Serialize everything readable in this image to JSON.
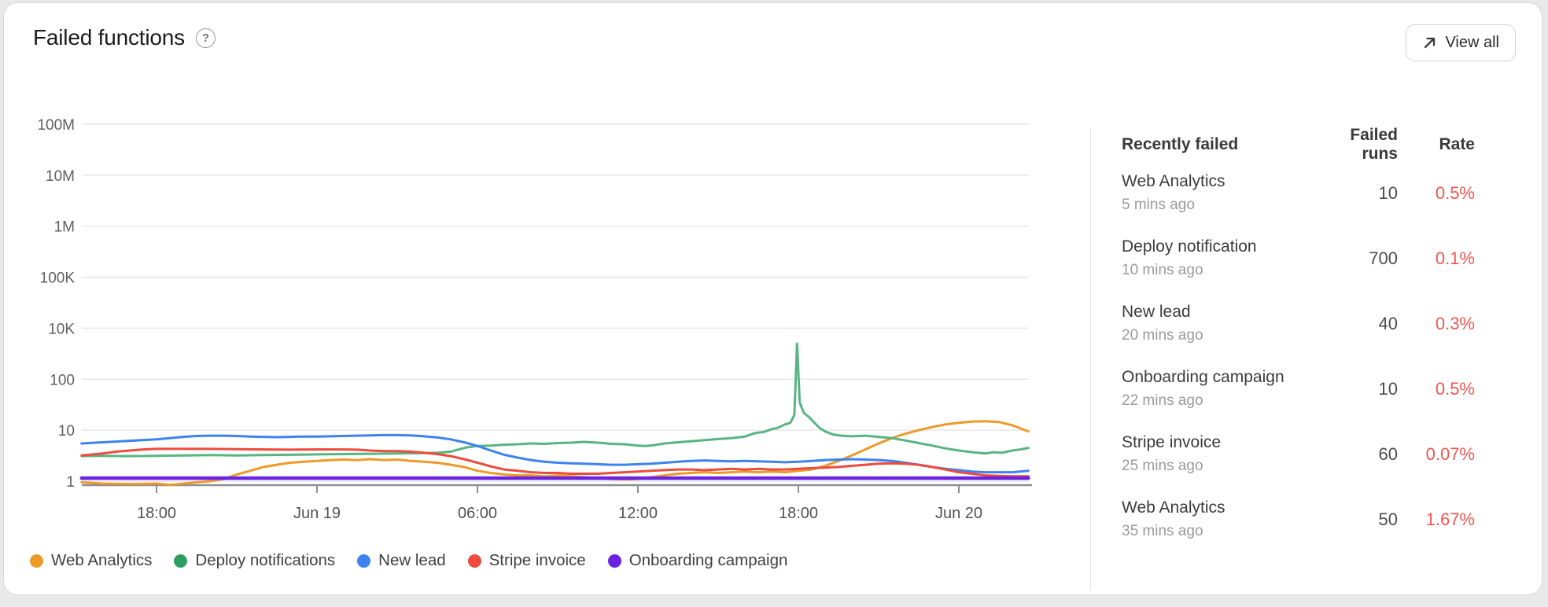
{
  "header": {
    "title": "Failed functions",
    "help_glyph": "?",
    "view_all_label": "View all"
  },
  "colors": {
    "card_bg": "#ffffff",
    "page_bg": "#e9e9e9",
    "grid": "#e8e8e8",
    "axis": "#8f8f8f",
    "rate_red": "#F2564F"
  },
  "chart_data": {
    "type": "line",
    "title": "Failed functions",
    "y_axis": {
      "scale": "log",
      "labels_bottom_to_top": [
        "1",
        "10",
        "100",
        "10K",
        "100K",
        "1M",
        "10M",
        "100M"
      ],
      "note": "1K decade is unlabeled/compressed between 100 and 10K"
    },
    "x_axis": {
      "t_unit": "hours since Jun 18 12:00",
      "ticks": [
        {
          "t": 6,
          "label": "18:00"
        },
        {
          "t": 12,
          "label": "Jun 19"
        },
        {
          "t": 18,
          "label": "06:00"
        },
        {
          "t": 24,
          "label": "12:00"
        },
        {
          "t": 30,
          "label": "18:00"
        },
        {
          "t": 36,
          "label": "Jun 20"
        }
      ]
    },
    "legend_position": "bottom-left",
    "grid": true,
    "series": [
      {
        "name": "Web Analytics",
        "color": "#EC9A28",
        "dot": "#EC9A28",
        "width": 3,
        "points": [
          [
            3.2,
            0.95
          ],
          [
            4,
            0.9
          ],
          [
            5,
            0.88
          ],
          [
            6,
            0.9
          ],
          [
            6.5,
            0.85
          ],
          [
            7,
            0.9
          ],
          [
            7.5,
            0.95
          ],
          [
            8,
            1.0
          ],
          [
            8.5,
            1.1
          ],
          [
            9,
            1.35
          ],
          [
            9.5,
            1.6
          ],
          [
            10,
            1.9
          ],
          [
            10.5,
            2.1
          ],
          [
            11,
            2.3
          ],
          [
            11.5,
            2.4
          ],
          [
            12,
            2.5
          ],
          [
            12.5,
            2.6
          ],
          [
            13,
            2.65
          ],
          [
            13.5,
            2.6
          ],
          [
            14,
            2.7
          ],
          [
            14.5,
            2.6
          ],
          [
            15,
            2.65
          ],
          [
            15.5,
            2.5
          ],
          [
            16,
            2.4
          ],
          [
            16.5,
            2.3
          ],
          [
            17,
            2.1
          ],
          [
            17.5,
            1.9
          ],
          [
            18,
            1.6
          ],
          [
            18.5,
            1.45
          ],
          [
            19,
            1.35
          ],
          [
            19.5,
            1.3
          ],
          [
            20,
            1.3
          ],
          [
            20.5,
            1.25
          ],
          [
            21,
            1.3
          ],
          [
            21.5,
            1.25
          ],
          [
            22,
            1.2
          ],
          [
            22.5,
            1.15
          ],
          [
            23,
            1.1
          ],
          [
            23.5,
            1.08
          ],
          [
            24,
            1.1
          ],
          [
            24.5,
            1.2
          ],
          [
            25,
            1.3
          ],
          [
            25.5,
            1.4
          ],
          [
            26,
            1.45
          ],
          [
            26.5,
            1.5
          ],
          [
            27,
            1.45
          ],
          [
            27.5,
            1.5
          ],
          [
            28,
            1.55
          ],
          [
            28.5,
            1.5
          ],
          [
            29,
            1.55
          ],
          [
            29.5,
            1.5
          ],
          [
            30,
            1.6
          ],
          [
            30.5,
            1.7
          ],
          [
            31,
            2.0
          ],
          [
            31.5,
            2.5
          ],
          [
            32,
            3.2
          ],
          [
            32.5,
            4.2
          ],
          [
            33,
            5.5
          ],
          [
            33.5,
            7
          ],
          [
            34,
            8.5
          ],
          [
            34.5,
            10
          ],
          [
            35,
            11.5
          ],
          [
            35.5,
            13
          ],
          [
            36,
            14
          ],
          [
            36.5,
            14.8
          ],
          [
            37,
            15
          ],
          [
            37.5,
            14.5
          ],
          [
            38,
            12.5
          ],
          [
            38.6,
            9.5
          ]
        ]
      },
      {
        "name": "Deploy notifications",
        "color": "#57B583",
        "dot": "#2E9E60",
        "width": 3,
        "points": [
          [
            3.2,
            3.1
          ],
          [
            4,
            3.15
          ],
          [
            5,
            3.1
          ],
          [
            6,
            3.15
          ],
          [
            7,
            3.2
          ],
          [
            8,
            3.25
          ],
          [
            9,
            3.2
          ],
          [
            10,
            3.25
          ],
          [
            11,
            3.3
          ],
          [
            12,
            3.35
          ],
          [
            13,
            3.4
          ],
          [
            14,
            3.45
          ],
          [
            15,
            3.5
          ],
          [
            16,
            3.55
          ],
          [
            16.5,
            3.6
          ],
          [
            17,
            3.8
          ],
          [
            17.3,
            4.2
          ],
          [
            17.6,
            4.6
          ],
          [
            18,
            4.9
          ],
          [
            18.5,
            5.0
          ],
          [
            19,
            5.2
          ],
          [
            19.5,
            5.3
          ],
          [
            20,
            5.5
          ],
          [
            20.5,
            5.4
          ],
          [
            21,
            5.6
          ],
          [
            21.5,
            5.7
          ],
          [
            22,
            5.9
          ],
          [
            22.5,
            5.7
          ],
          [
            23,
            5.4
          ],
          [
            23.5,
            5.3
          ],
          [
            24,
            5.0
          ],
          [
            24.3,
            4.9
          ],
          [
            24.6,
            5.1
          ],
          [
            25,
            5.5
          ],
          [
            25.5,
            5.8
          ],
          [
            26,
            6.1
          ],
          [
            26.5,
            6.4
          ],
          [
            27,
            6.7
          ],
          [
            27.5,
            7.0
          ],
          [
            28,
            7.5
          ],
          [
            28.3,
            8.5
          ],
          [
            28.5,
            9.0
          ],
          [
            28.7,
            9.2
          ],
          [
            29,
            10.5
          ],
          [
            29.2,
            11
          ],
          [
            29.5,
            13
          ],
          [
            29.7,
            14
          ],
          [
            29.85,
            20
          ],
          [
            29.95,
            2500
          ],
          [
            30.05,
            35
          ],
          [
            30.2,
            22
          ],
          [
            30.4,
            18
          ],
          [
            30.6,
            14
          ],
          [
            30.8,
            11
          ],
          [
            31,
            9.5
          ],
          [
            31.3,
            8.2
          ],
          [
            31.6,
            7.8
          ],
          [
            32,
            7.6
          ],
          [
            32.5,
            7.8
          ],
          [
            33,
            7.4
          ],
          [
            33.5,
            7.0
          ],
          [
            34,
            6.3
          ],
          [
            34.5,
            5.6
          ],
          [
            35,
            5.0
          ],
          [
            35.5,
            4.4
          ],
          [
            36,
            4.0
          ],
          [
            36.5,
            3.7
          ],
          [
            37,
            3.5
          ],
          [
            37.3,
            3.7
          ],
          [
            37.6,
            3.6
          ],
          [
            38,
            4.0
          ],
          [
            38.3,
            4.2
          ],
          [
            38.6,
            4.5
          ]
        ]
      },
      {
        "name": "New lead",
        "color": "#3C83F1",
        "dot": "#3C83F1",
        "width": 3,
        "points": [
          [
            3.2,
            5.5
          ],
          [
            4,
            5.8
          ],
          [
            5,
            6.2
          ],
          [
            6,
            6.6
          ],
          [
            6.5,
            7.0
          ],
          [
            7,
            7.4
          ],
          [
            7.5,
            7.7
          ],
          [
            8,
            7.8
          ],
          [
            8.5,
            7.8
          ],
          [
            9,
            7.7
          ],
          [
            9.5,
            7.5
          ],
          [
            10,
            7.4
          ],
          [
            10.5,
            7.3
          ],
          [
            11,
            7.4
          ],
          [
            11.5,
            7.5
          ],
          [
            12,
            7.5
          ],
          [
            12.5,
            7.6
          ],
          [
            13,
            7.7
          ],
          [
            13.5,
            7.8
          ],
          [
            14,
            7.9
          ],
          [
            14.5,
            8.0
          ],
          [
            15,
            8.0
          ],
          [
            15.5,
            7.9
          ],
          [
            16,
            7.6
          ],
          [
            16.5,
            7.2
          ],
          [
            17,
            6.6
          ],
          [
            17.5,
            5.8
          ],
          [
            18,
            4.9
          ],
          [
            18.5,
            4.0
          ],
          [
            19,
            3.3
          ],
          [
            19.5,
            2.9
          ],
          [
            20,
            2.6
          ],
          [
            20.5,
            2.4
          ],
          [
            21,
            2.3
          ],
          [
            21.5,
            2.25
          ],
          [
            22,
            2.2
          ],
          [
            22.5,
            2.15
          ],
          [
            23,
            2.1
          ],
          [
            23.5,
            2.1
          ],
          [
            24,
            2.15
          ],
          [
            24.5,
            2.2
          ],
          [
            25,
            2.3
          ],
          [
            25.5,
            2.4
          ],
          [
            26,
            2.5
          ],
          [
            26.5,
            2.55
          ],
          [
            27,
            2.5
          ],
          [
            27.5,
            2.45
          ],
          [
            28,
            2.5
          ],
          [
            28.5,
            2.45
          ],
          [
            29,
            2.4
          ],
          [
            29.5,
            2.35
          ],
          [
            30,
            2.4
          ],
          [
            30.5,
            2.5
          ],
          [
            31,
            2.6
          ],
          [
            31.5,
            2.65
          ],
          [
            32,
            2.7
          ],
          [
            32.5,
            2.65
          ],
          [
            33,
            2.6
          ],
          [
            33.5,
            2.5
          ],
          [
            34,
            2.3
          ],
          [
            34.5,
            2.1
          ],
          [
            35,
            1.9
          ],
          [
            35.5,
            1.75
          ],
          [
            36,
            1.65
          ],
          [
            36.5,
            1.55
          ],
          [
            37,
            1.5
          ],
          [
            37.5,
            1.5
          ],
          [
            38,
            1.5
          ],
          [
            38.6,
            1.6
          ]
        ]
      },
      {
        "name": "Stripe invoice",
        "color": "#EE4B3E",
        "dot": "#EE4B3E",
        "width": 3,
        "points": [
          [
            3.2,
            3.2
          ],
          [
            4,
            3.5
          ],
          [
            4.5,
            3.8
          ],
          [
            5,
            4.0
          ],
          [
            5.5,
            4.2
          ],
          [
            6,
            4.3
          ],
          [
            7,
            4.3
          ],
          [
            8,
            4.3
          ],
          [
            9,
            4.25
          ],
          [
            10,
            4.2
          ],
          [
            11,
            4.15
          ],
          [
            12,
            4.2
          ],
          [
            13,
            4.2
          ],
          [
            13.5,
            4.15
          ],
          [
            14,
            4.0
          ],
          [
            14.5,
            3.9
          ],
          [
            15,
            3.9
          ],
          [
            15.5,
            3.8
          ],
          [
            16,
            3.6
          ],
          [
            16.5,
            3.4
          ],
          [
            17,
            3.1
          ],
          [
            17.5,
            2.7
          ],
          [
            18,
            2.3
          ],
          [
            18.5,
            1.95
          ],
          [
            19,
            1.7
          ],
          [
            19.5,
            1.6
          ],
          [
            20,
            1.5
          ],
          [
            20.5,
            1.45
          ],
          [
            21,
            1.45
          ],
          [
            21.5,
            1.4
          ],
          [
            22,
            1.4
          ],
          [
            22.5,
            1.4
          ],
          [
            23,
            1.45
          ],
          [
            23.5,
            1.5
          ],
          [
            24,
            1.55
          ],
          [
            24.5,
            1.6
          ],
          [
            25,
            1.65
          ],
          [
            25.5,
            1.7
          ],
          [
            26,
            1.7
          ],
          [
            26.5,
            1.65
          ],
          [
            27,
            1.7
          ],
          [
            27.5,
            1.75
          ],
          [
            28,
            1.7
          ],
          [
            28.5,
            1.75
          ],
          [
            29,
            1.7
          ],
          [
            29.5,
            1.7
          ],
          [
            30,
            1.75
          ],
          [
            30.5,
            1.8
          ],
          [
            31,
            1.85
          ],
          [
            31.5,
            1.9
          ],
          [
            32,
            2.0
          ],
          [
            32.5,
            2.1
          ],
          [
            33,
            2.2
          ],
          [
            33.5,
            2.25
          ],
          [
            34,
            2.2
          ],
          [
            34.5,
            2.1
          ],
          [
            35,
            1.9
          ],
          [
            35.5,
            1.7
          ],
          [
            36,
            1.5
          ],
          [
            36.5,
            1.4
          ],
          [
            37,
            1.3
          ],
          [
            37.5,
            1.27
          ],
          [
            38,
            1.25
          ],
          [
            38.6,
            1.25
          ]
        ]
      },
      {
        "name": "Onboarding campaign",
        "color": "#6C22E2",
        "dot": "#6C22E2",
        "width": 4.5,
        "points": [
          [
            3.2,
            1.15
          ],
          [
            38.6,
            1.15
          ]
        ]
      }
    ]
  },
  "table": {
    "headers": [
      "Recently failed",
      "Failed runs",
      "Rate"
    ],
    "rows": [
      {
        "name": "Web Analytics",
        "time": "5 mins ago",
        "runs": "10",
        "rate": "0.5%"
      },
      {
        "name": "Deploy notification",
        "time": "10 mins ago",
        "runs": "700",
        "rate": "0.1%"
      },
      {
        "name": "New lead",
        "time": "20 mins ago",
        "runs": "40",
        "rate": "0.3%"
      },
      {
        "name": "Onboarding campaign",
        "time": "22 mins ago",
        "runs": "10",
        "rate": "0.5%"
      },
      {
        "name": "Stripe invoice",
        "time": "25 mins ago",
        "runs": "60",
        "rate": "0.07%"
      },
      {
        "name": "Web Analytics",
        "time": "35 mins ago",
        "runs": "50",
        "rate": "1.67%"
      }
    ]
  }
}
